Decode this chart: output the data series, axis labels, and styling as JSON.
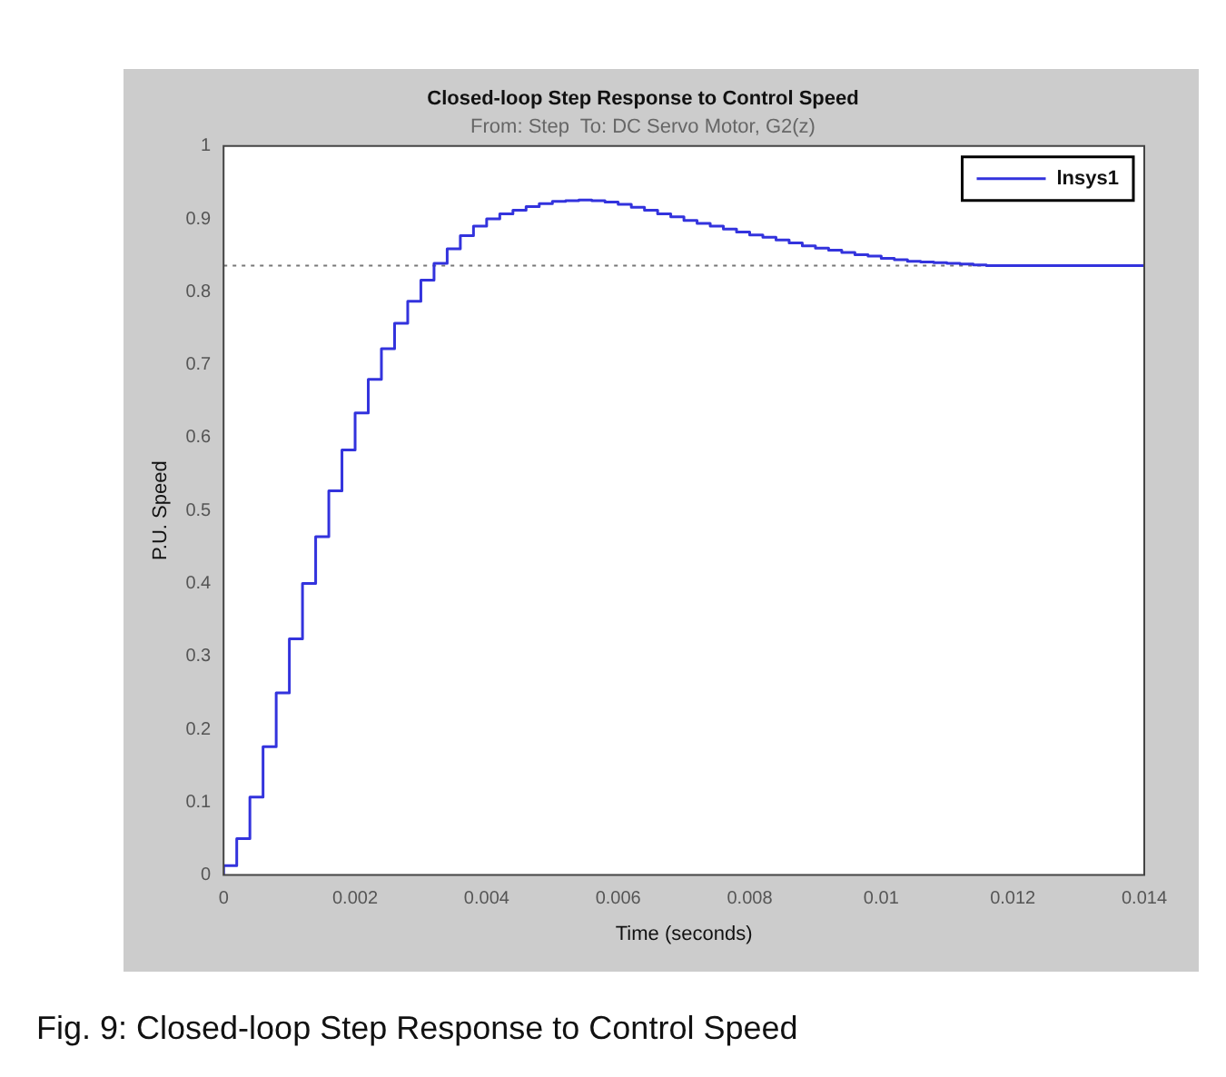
{
  "chart_data": {
    "type": "step",
    "title": "Closed-loop Step Response to Control Speed",
    "subtitle": "From: Step  To: DC Servo Motor, G2(z)",
    "xlabel": "Time (seconds)",
    "ylabel": "P.U. Speed",
    "annotations": [
      "Fig. 9: Closed-loop Step Response to Control Speed"
    ],
    "x": [
      0,
      0.0002,
      0.0004,
      0.0006,
      0.0008,
      0.001,
      0.0012,
      0.0014,
      0.0016,
      0.0018,
      0.002,
      0.0022,
      0.0024,
      0.0026,
      0.0028,
      0.003,
      0.0032,
      0.0034,
      0.0036,
      0.0038,
      0.004,
      0.0042,
      0.0044,
      0.0046,
      0.0048,
      0.005,
      0.0052,
      0.0054,
      0.0056,
      0.0058,
      0.006,
      0.0062,
      0.0064,
      0.0066,
      0.0068,
      0.007,
      0.0072,
      0.0074,
      0.0076,
      0.0078,
      0.008,
      0.0082,
      0.0084,
      0.0086,
      0.0088,
      0.009,
      0.0092,
      0.0094,
      0.0096,
      0.0098,
      0.01,
      0.0102,
      0.0104,
      0.0106,
      0.0108,
      0.011,
      0.0112,
      0.0114,
      0.0116,
      0.0118,
      0.012,
      0.0122,
      0.0124,
      0.0126,
      0.0128,
      0.013,
      0.0132,
      0.0134,
      0.0136,
      0.0138,
      0.014
    ],
    "series": [
      {
        "name": "lnsys1",
        "color": "#3333dd",
        "values": [
          0,
          0.013,
          0.05,
          0.107,
          0.176,
          0.25,
          0.324,
          0.4,
          0.464,
          0.527,
          0.583,
          0.634,
          0.68,
          0.722,
          0.757,
          0.787,
          0.816,
          0.839,
          0.859,
          0.877,
          0.89,
          0.9,
          0.907,
          0.912,
          0.917,
          0.921,
          0.924,
          0.925,
          0.926,
          0.925,
          0.923,
          0.92,
          0.916,
          0.912,
          0.907,
          0.903,
          0.898,
          0.894,
          0.89,
          0.886,
          0.882,
          0.878,
          0.875,
          0.871,
          0.867,
          0.863,
          0.86,
          0.857,
          0.854,
          0.851,
          0.849,
          0.846,
          0.844,
          0.842,
          0.841,
          0.84,
          0.839,
          0.838,
          0.837,
          0.836,
          0.836,
          0.836,
          0.836,
          0.836,
          0.836,
          0.836,
          0.836,
          0.836,
          0.836,
          0.836,
          0.836
        ]
      }
    ],
    "xlim": [
      0,
      0.014
    ],
    "xticks": [
      0,
      0.002,
      0.004,
      0.006,
      0.008,
      0.01,
      0.012,
      0.014
    ],
    "ylim": [
      0,
      1
    ],
    "yticks": [
      0,
      0.1,
      0.2,
      0.3,
      0.4,
      0.5,
      0.6,
      0.7,
      0.8,
      0.9,
      1
    ],
    "ref_lines": [
      {
        "axis": "y",
        "value": 0.836,
        "color": "#777777",
        "line_style": "dotted"
      }
    ],
    "legend": "top right",
    "marker": "none",
    "line_style": "solid"
  }
}
